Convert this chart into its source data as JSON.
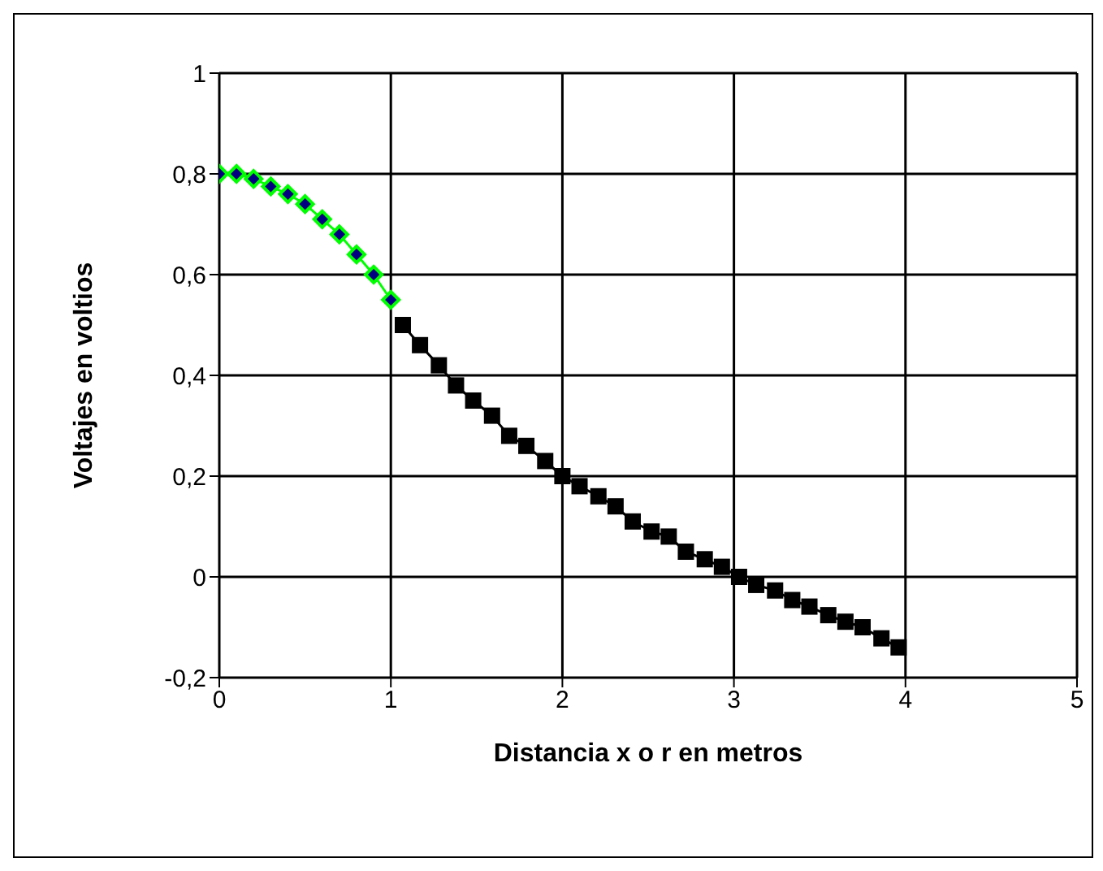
{
  "chart_data": {
    "type": "line",
    "xlabel": "Distancia x o r en metros",
    "ylabel": "Voltajes en voltios",
    "xlim": [
      0,
      5
    ],
    "xticks": [
      0,
      1,
      2,
      3,
      4,
      5
    ],
    "ylim": [
      -0.2,
      1
    ],
    "yticks": [
      {
        "value": -0.2,
        "label": "-0,2"
      },
      0,
      {
        "value": 0.2,
        "label": "0,2"
      },
      {
        "value": 0.4,
        "label": "0,4"
      },
      {
        "value": 0.6,
        "label": "0,6"
      },
      {
        "value": 0.8,
        "label": "0,8"
      },
      1
    ],
    "grid": true,
    "legend": false,
    "series": [
      {
        "color": "#00ff00",
        "marker": "diamond",
        "x": [
          0,
          0.1,
          0.2,
          0.3,
          0.4,
          0.5,
          0.6,
          0.7,
          0.8,
          0.9,
          1.0
        ],
        "values": [
          0.8,
          0.8,
          0.79,
          0.775,
          0.76,
          0.74,
          0.71,
          0.68,
          0.64,
          0.6,
          0.55
        ]
      },
      {
        "color": "#000000",
        "marker": "square",
        "x": [
          1.07,
          1.17,
          1.28,
          1.38,
          1.48,
          1.59,
          1.69,
          1.79,
          1.9,
          2.0,
          2.1,
          2.21,
          2.31,
          2.41,
          2.52,
          2.62,
          2.72,
          2.83,
          2.93,
          3.03,
          3.13,
          3.24,
          3.34,
          3.44,
          3.55,
          3.65,
          3.75,
          3.86,
          3.96
        ],
        "values": [
          0.5,
          0.46,
          0.42,
          0.38,
          0.35,
          0.32,
          0.28,
          0.26,
          0.23,
          0.2,
          0.18,
          0.16,
          0.14,
          0.11,
          0.09,
          0.08,
          0.05,
          0.035,
          0.02,
          0.0,
          -0.016,
          -0.027,
          -0.046,
          -0.059,
          -0.076,
          -0.089,
          -0.1,
          -0.122,
          -0.14
        ]
      }
    ]
  }
}
